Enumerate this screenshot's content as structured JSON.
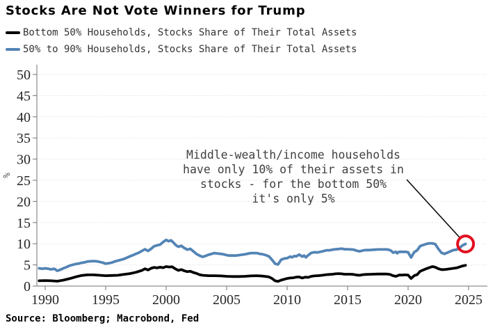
{
  "title": "Stocks Are Not Vote Winners for Trump",
  "legend": {
    "items": [
      {
        "label": "Bottom 50% Households, Stocks Share of Their Total Assets",
        "color": "#000000"
      },
      {
        "label": "50% to 90% Households, Stocks Share of Their Total Assets",
        "color": "#5384b5"
      }
    ]
  },
  "annotation": {
    "text": "Middle-wealth/income households\nhave only 10% of their assets in\nstocks - for the bottom 50%\nit's only 5%",
    "color": "#404040"
  },
  "source": "Source: Bloomberg; Macrobond, Fed",
  "chart_data": {
    "type": "line",
    "title": "Stocks Are Not Vote Winners for Trump",
    "xlabel": "",
    "ylabel": "%",
    "ylim": [
      0,
      50
    ],
    "yticks": [
      0,
      5,
      10,
      15,
      20,
      25,
      30,
      35,
      40,
      45,
      50
    ],
    "xticks": [
      1990,
      1995,
      2000,
      2005,
      2010,
      2015,
      2020,
      2025
    ],
    "grid": "horizontal-dashed",
    "legend_position": "top-left",
    "colors": {
      "grid": "#e0e0e0",
      "axis": "#737373",
      "tick_label": "#262626",
      "highlight": "#e20f1f"
    },
    "highlight": {
      "shape": "circle",
      "x": 2024.75,
      "y": 9.95
    },
    "series": [
      {
        "name": "Bottom 50% Households, Stocks Share of Their Total Assets",
        "color": "#000000",
        "points": [
          [
            1989.5,
            1.25
          ],
          [
            1990,
            1.3
          ],
          [
            1990.5,
            1.25
          ],
          [
            1991,
            1.15
          ],
          [
            1991.5,
            1.4
          ],
          [
            1992,
            1.75
          ],
          [
            1992.5,
            2.15
          ],
          [
            1993,
            2.5
          ],
          [
            1993.5,
            2.65
          ],
          [
            1994,
            2.65
          ],
          [
            1994.5,
            2.55
          ],
          [
            1995,
            2.45
          ],
          [
            1995.5,
            2.5
          ],
          [
            1996,
            2.55
          ],
          [
            1996.5,
            2.75
          ],
          [
            1997,
            2.95
          ],
          [
            1997.5,
            3.25
          ],
          [
            1998,
            3.7
          ],
          [
            1998.25,
            4.1
          ],
          [
            1998.5,
            3.8
          ],
          [
            1998.75,
            4.2
          ],
          [
            1999,
            4.4
          ],
          [
            1999.25,
            4.3
          ],
          [
            1999.5,
            4.45
          ],
          [
            1999.75,
            4.35
          ],
          [
            2000,
            4.6
          ],
          [
            2000.25,
            4.5
          ],
          [
            2000.5,
            4.55
          ],
          [
            2000.75,
            4.1
          ],
          [
            2001,
            3.7
          ],
          [
            2001.25,
            3.9
          ],
          [
            2001.5,
            3.6
          ],
          [
            2001.75,
            3.4
          ],
          [
            2002,
            3.5
          ],
          [
            2002.25,
            3.2
          ],
          [
            2002.5,
            3.0
          ],
          [
            2002.75,
            2.7
          ],
          [
            2003,
            2.55
          ],
          [
            2003.5,
            2.45
          ],
          [
            2004,
            2.45
          ],
          [
            2004.5,
            2.4
          ],
          [
            2005,
            2.3
          ],
          [
            2005.5,
            2.25
          ],
          [
            2006,
            2.25
          ],
          [
            2006.5,
            2.3
          ],
          [
            2007,
            2.4
          ],
          [
            2007.5,
            2.45
          ],
          [
            2008,
            2.35
          ],
          [
            2008.5,
            2.15
          ],
          [
            2008.75,
            1.8
          ],
          [
            2009,
            1.25
          ],
          [
            2009.25,
            1.1
          ],
          [
            2009.5,
            1.4
          ],
          [
            2009.75,
            1.6
          ],
          [
            2010,
            1.8
          ],
          [
            2010.25,
            1.9
          ],
          [
            2010.5,
            1.95
          ],
          [
            2010.75,
            2.1
          ],
          [
            2011,
            2.15
          ],
          [
            2011.25,
            1.9
          ],
          [
            2011.5,
            2.1
          ],
          [
            2011.75,
            2.05
          ],
          [
            2012,
            2.3
          ],
          [
            2012.25,
            2.4
          ],
          [
            2012.5,
            2.45
          ],
          [
            2012.75,
            2.5
          ],
          [
            2013,
            2.6
          ],
          [
            2013.25,
            2.7
          ],
          [
            2013.5,
            2.75
          ],
          [
            2013.75,
            2.8
          ],
          [
            2014,
            2.9
          ],
          [
            2014.25,
            2.95
          ],
          [
            2014.5,
            2.9
          ],
          [
            2014.75,
            2.8
          ],
          [
            2015,
            2.8
          ],
          [
            2015.25,
            2.8
          ],
          [
            2015.5,
            2.75
          ],
          [
            2015.75,
            2.6
          ],
          [
            2016,
            2.55
          ],
          [
            2016.25,
            2.7
          ],
          [
            2016.5,
            2.75
          ],
          [
            2017,
            2.8
          ],
          [
            2017.5,
            2.85
          ],
          [
            2018,
            2.85
          ],
          [
            2018.25,
            2.85
          ],
          [
            2018.5,
            2.75
          ],
          [
            2018.75,
            2.45
          ],
          [
            2019,
            2.3
          ],
          [
            2019.25,
            2.6
          ],
          [
            2019.5,
            2.6
          ],
          [
            2019.75,
            2.65
          ],
          [
            2020,
            2.6
          ],
          [
            2020.25,
            1.8
          ],
          [
            2020.5,
            2.45
          ],
          [
            2020.75,
            2.7
          ],
          [
            2021,
            3.5
          ],
          [
            2021.25,
            3.8
          ],
          [
            2021.5,
            4.1
          ],
          [
            2021.75,
            4.35
          ],
          [
            2022,
            4.6
          ],
          [
            2022.25,
            4.45
          ],
          [
            2022.5,
            4.1
          ],
          [
            2022.75,
            3.9
          ],
          [
            2023,
            3.9
          ],
          [
            2023.25,
            4.0
          ],
          [
            2023.5,
            4.1
          ],
          [
            2023.75,
            4.2
          ],
          [
            2024,
            4.3
          ],
          [
            2024.25,
            4.5
          ],
          [
            2024.5,
            4.75
          ],
          [
            2024.75,
            4.9
          ]
        ]
      },
      {
        "name": "50% to 90% Households, Stocks Share of Their Total Assets",
        "color": "#5384b5",
        "points": [
          [
            1989.5,
            4.2
          ],
          [
            1989.75,
            4.1
          ],
          [
            1990,
            4.2
          ],
          [
            1990.25,
            4.1
          ],
          [
            1990.5,
            3.95
          ],
          [
            1990.75,
            4.1
          ],
          [
            1991,
            3.6
          ],
          [
            1991.25,
            3.85
          ],
          [
            1991.5,
            4.2
          ],
          [
            1991.75,
            4.45
          ],
          [
            1992,
            4.8
          ],
          [
            1992.25,
            5.0
          ],
          [
            1992.5,
            5.2
          ],
          [
            1992.75,
            5.3
          ],
          [
            1993,
            5.5
          ],
          [
            1993.25,
            5.6
          ],
          [
            1993.5,
            5.8
          ],
          [
            1993.75,
            5.85
          ],
          [
            1994,
            5.9
          ],
          [
            1994.25,
            5.85
          ],
          [
            1994.5,
            5.7
          ],
          [
            1994.75,
            5.55
          ],
          [
            1995,
            5.3
          ],
          [
            1995.25,
            5.4
          ],
          [
            1995.5,
            5.55
          ],
          [
            1995.75,
            5.8
          ],
          [
            1996,
            6.0
          ],
          [
            1996.25,
            6.2
          ],
          [
            1996.5,
            6.4
          ],
          [
            1996.75,
            6.7
          ],
          [
            1997,
            7.0
          ],
          [
            1997.25,
            7.3
          ],
          [
            1997.5,
            7.6
          ],
          [
            1997.75,
            7.9
          ],
          [
            1998,
            8.3
          ],
          [
            1998.25,
            8.7
          ],
          [
            1998.5,
            8.3
          ],
          [
            1998.75,
            8.8
          ],
          [
            1999,
            9.4
          ],
          [
            1999.25,
            9.6
          ],
          [
            1999.5,
            9.8
          ],
          [
            1999.75,
            10.4
          ],
          [
            2000,
            10.9
          ],
          [
            2000.2,
            10.6
          ],
          [
            2000.4,
            10.8
          ],
          [
            2000.6,
            10.3
          ],
          [
            2000.75,
            9.8
          ],
          [
            2001,
            9.3
          ],
          [
            2001.25,
            9.5
          ],
          [
            2001.5,
            9.0
          ],
          [
            2001.75,
            8.6
          ],
          [
            2002,
            8.8
          ],
          [
            2002.25,
            8.2
          ],
          [
            2002.5,
            7.6
          ],
          [
            2002.75,
            7.2
          ],
          [
            2003,
            6.9
          ],
          [
            2003.25,
            7.1
          ],
          [
            2003.5,
            7.4
          ],
          [
            2003.75,
            7.6
          ],
          [
            2004,
            7.8
          ],
          [
            2004.25,
            7.7
          ],
          [
            2004.5,
            7.6
          ],
          [
            2004.75,
            7.5
          ],
          [
            2005,
            7.3
          ],
          [
            2005.25,
            7.2
          ],
          [
            2005.5,
            7.2
          ],
          [
            2005.75,
            7.2
          ],
          [
            2006,
            7.3
          ],
          [
            2006.25,
            7.4
          ],
          [
            2006.5,
            7.5
          ],
          [
            2006.75,
            7.65
          ],
          [
            2007,
            7.8
          ],
          [
            2007.25,
            7.8
          ],
          [
            2007.5,
            7.8
          ],
          [
            2007.75,
            7.6
          ],
          [
            2008,
            7.5
          ],
          [
            2008.25,
            7.3
          ],
          [
            2008.5,
            7.0
          ],
          [
            2008.75,
            6.2
          ],
          [
            2009,
            5.3
          ],
          [
            2009.25,
            5.1
          ],
          [
            2009.5,
            6.2
          ],
          [
            2009.75,
            6.5
          ],
          [
            2010,
            6.6
          ],
          [
            2010.25,
            6.95
          ],
          [
            2010.4,
            6.8
          ],
          [
            2010.6,
            7.1
          ],
          [
            2010.75,
            7.0
          ],
          [
            2011,
            7.45
          ],
          [
            2011.25,
            6.95
          ],
          [
            2011.4,
            7.2
          ],
          [
            2011.55,
            6.8
          ],
          [
            2011.75,
            7.3
          ],
          [
            2012,
            7.85
          ],
          [
            2012.25,
            8.0
          ],
          [
            2012.5,
            7.95
          ],
          [
            2012.75,
            8.1
          ],
          [
            2013,
            8.25
          ],
          [
            2013.25,
            8.45
          ],
          [
            2013.5,
            8.45
          ],
          [
            2013.75,
            8.6
          ],
          [
            2014,
            8.7
          ],
          [
            2014.25,
            8.75
          ],
          [
            2014.5,
            8.85
          ],
          [
            2014.75,
            8.7
          ],
          [
            2015,
            8.7
          ],
          [
            2015.25,
            8.65
          ],
          [
            2015.5,
            8.6
          ],
          [
            2015.75,
            8.35
          ],
          [
            2016,
            8.2
          ],
          [
            2016.25,
            8.4
          ],
          [
            2016.5,
            8.5
          ],
          [
            2016.75,
            8.5
          ],
          [
            2017,
            8.55
          ],
          [
            2017.25,
            8.6
          ],
          [
            2017.5,
            8.65
          ],
          [
            2017.75,
            8.65
          ],
          [
            2018,
            8.65
          ],
          [
            2018.25,
            8.65
          ],
          [
            2018.5,
            8.5
          ],
          [
            2018.65,
            8.2
          ],
          [
            2018.75,
            7.9
          ],
          [
            2019,
            8.1
          ],
          [
            2019.1,
            7.75
          ],
          [
            2019.25,
            8.1
          ],
          [
            2019.5,
            8.1
          ],
          [
            2019.75,
            8.1
          ],
          [
            2020,
            8.0
          ],
          [
            2020.25,
            6.75
          ],
          [
            2020.5,
            8.0
          ],
          [
            2020.75,
            8.45
          ],
          [
            2021,
            9.45
          ],
          [
            2021.25,
            9.7
          ],
          [
            2021.5,
            9.95
          ],
          [
            2021.75,
            10.1
          ],
          [
            2022,
            10.1
          ],
          [
            2022.25,
            9.9
          ],
          [
            2022.5,
            8.8
          ],
          [
            2022.75,
            7.9
          ],
          [
            2023,
            7.6
          ],
          [
            2023.25,
            7.9
          ],
          [
            2023.5,
            8.2
          ],
          [
            2023.75,
            8.5
          ],
          [
            2024,
            8.6
          ],
          [
            2024.25,
            9.0
          ],
          [
            2024.5,
            9.6
          ],
          [
            2024.75,
            9.95
          ]
        ]
      }
    ]
  }
}
